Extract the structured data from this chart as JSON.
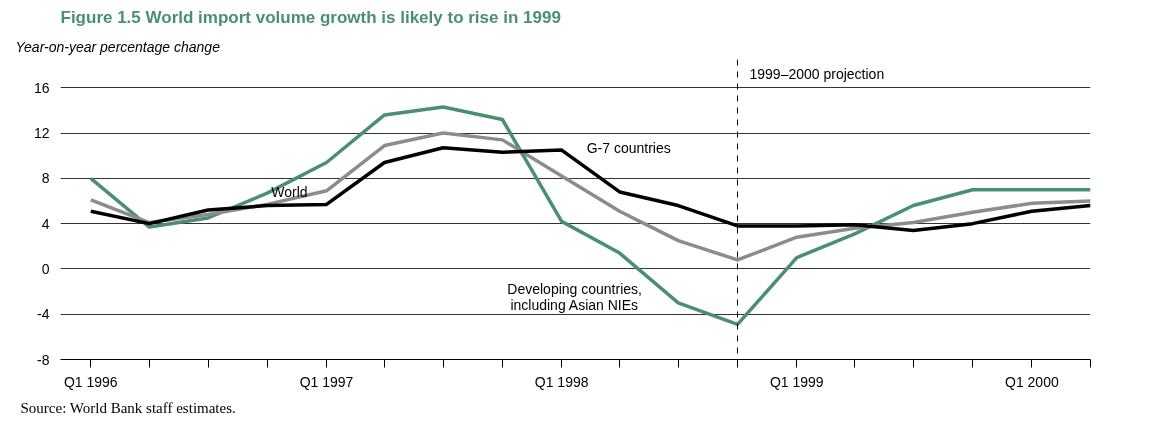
{
  "chart_data": {
    "type": "line",
    "title": "Figure 1.5  World import volume growth is likely to rise in 1999",
    "ylabel": "Year-on-year percentage change",
    "x": [
      "1996-01",
      "1996-04",
      "1996-07",
      "1996-10",
      "1997-01",
      "1997-04",
      "1997-07",
      "1997-10",
      "1998-01",
      "1998-04",
      "1998-07",
      "1998-10",
      "1999-01",
      "1999-04",
      "1999-07",
      "1999-10",
      "2000-01",
      "2000-04"
    ],
    "series": [
      {
        "name": "Developing countries,\nincluding Asian NIEs",
        "color": "#4a8f72",
        "values": [
          8,
          3.7,
          4.5,
          6.7,
          9.4,
          13.6,
          14.3,
          13.2,
          4.2,
          1.4,
          -3,
          -4.9,
          1,
          3.1,
          5.6,
          7,
          7,
          7
        ]
      },
      {
        "name": "World",
        "color": "#8c8c8c",
        "values": [
          6.1,
          4.1,
          4.8,
          5.7,
          6.9,
          10.9,
          12,
          11.4,
          8.2,
          5.1,
          2.5,
          0.8,
          2.8,
          3.6,
          4.1,
          5,
          5.8,
          6
        ]
      },
      {
        "name": "G-7 countries",
        "color": "#000000",
        "values": [
          5.1,
          4,
          5.2,
          5.6,
          5.7,
          9.4,
          10.7,
          10.3,
          10.5,
          6.8,
          5.6,
          3.8,
          3.8,
          3.9,
          3.4,
          4,
          5.1,
          5.6
        ]
      }
    ],
    "xlim": [
      "1995-11-15",
      "2000-04"
    ],
    "xticks": [
      {
        "value": "1996-01",
        "label": "Q1 1996"
      },
      {
        "value": "1996-04",
        "label": null
      },
      {
        "value": "1996-07",
        "label": null
      },
      {
        "value": "1996-10",
        "label": null
      },
      {
        "value": "1997-01",
        "label": "Q1 1997"
      },
      {
        "value": "1997-04",
        "label": null
      },
      {
        "value": "1997-07",
        "label": null
      },
      {
        "value": "1997-10",
        "label": null
      },
      {
        "value": "1998-01",
        "label": "Q1 1998"
      },
      {
        "value": "1998-04",
        "label": null
      },
      {
        "value": "1998-07",
        "label": null
      },
      {
        "value": "1998-10",
        "label": null
      },
      {
        "value": "1999-01",
        "label": "Q1 1999"
      },
      {
        "value": "1999-04",
        "label": null
      },
      {
        "value": "1999-07",
        "label": null
      },
      {
        "value": "1999-10",
        "label": null
      },
      {
        "value": "2000-01",
        "label": "Q1 2000"
      },
      {
        "value": "2000-04",
        "label": null
      }
    ],
    "ylim": [
      -8,
      18.5
    ],
    "yticks": [
      -8,
      -4,
      0,
      4,
      8,
      12,
      16
    ],
    "ref_lines": [
      {
        "axis": "x",
        "value": "1998-10",
        "label": "1999–2000 projection",
        "line_style": "dashed",
        "color": "#000000"
      }
    ],
    "annotations": [
      "Source: World Bank staff estimates."
    ],
    "grid": "y",
    "legend": false,
    "marker": "none",
    "line_style": "solid"
  }
}
